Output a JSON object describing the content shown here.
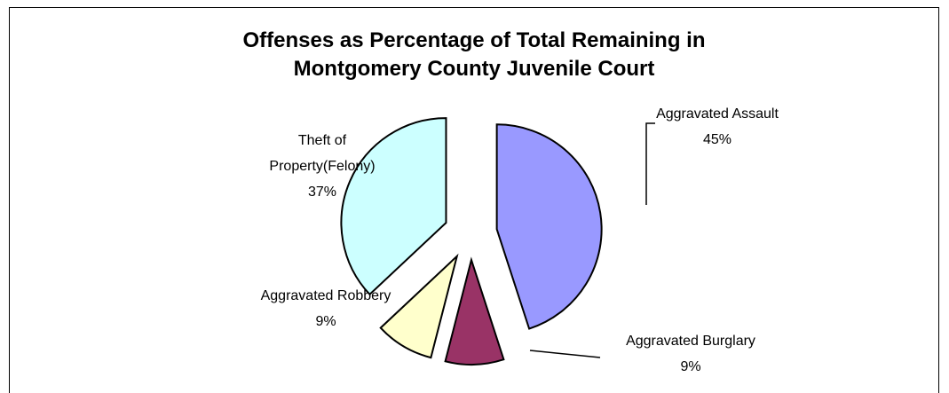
{
  "chart_data": {
    "type": "pie",
    "title_lines": [
      "Offenses as Percentage of Total Remaining in",
      "Montgomery County Juvenile Court"
    ],
    "slices": [
      {
        "name": "Aggravated Assault",
        "value": 45,
        "label": "45%",
        "color": "#9999ff"
      },
      {
        "name": "Aggravated Burglary",
        "value": 9,
        "label": "9%",
        "color": "#993366"
      },
      {
        "name": "Aggravated Robbery",
        "value": 9,
        "label": "9%",
        "color": "#ffffcc"
      },
      {
        "name": "Theft of Property(Felony)",
        "value": 37,
        "label": "37%",
        "color": "#ccffff"
      }
    ],
    "label_lines": [
      [
        "Aggravated Assault",
        "45%"
      ],
      [
        "Aggravated Burglary",
        "9%"
      ],
      [
        "Aggravated Robbery",
        "9%"
      ],
      [
        "Theft of",
        "Property(Felony)",
        "37%"
      ]
    ],
    "exploded": true,
    "legend": "none"
  }
}
